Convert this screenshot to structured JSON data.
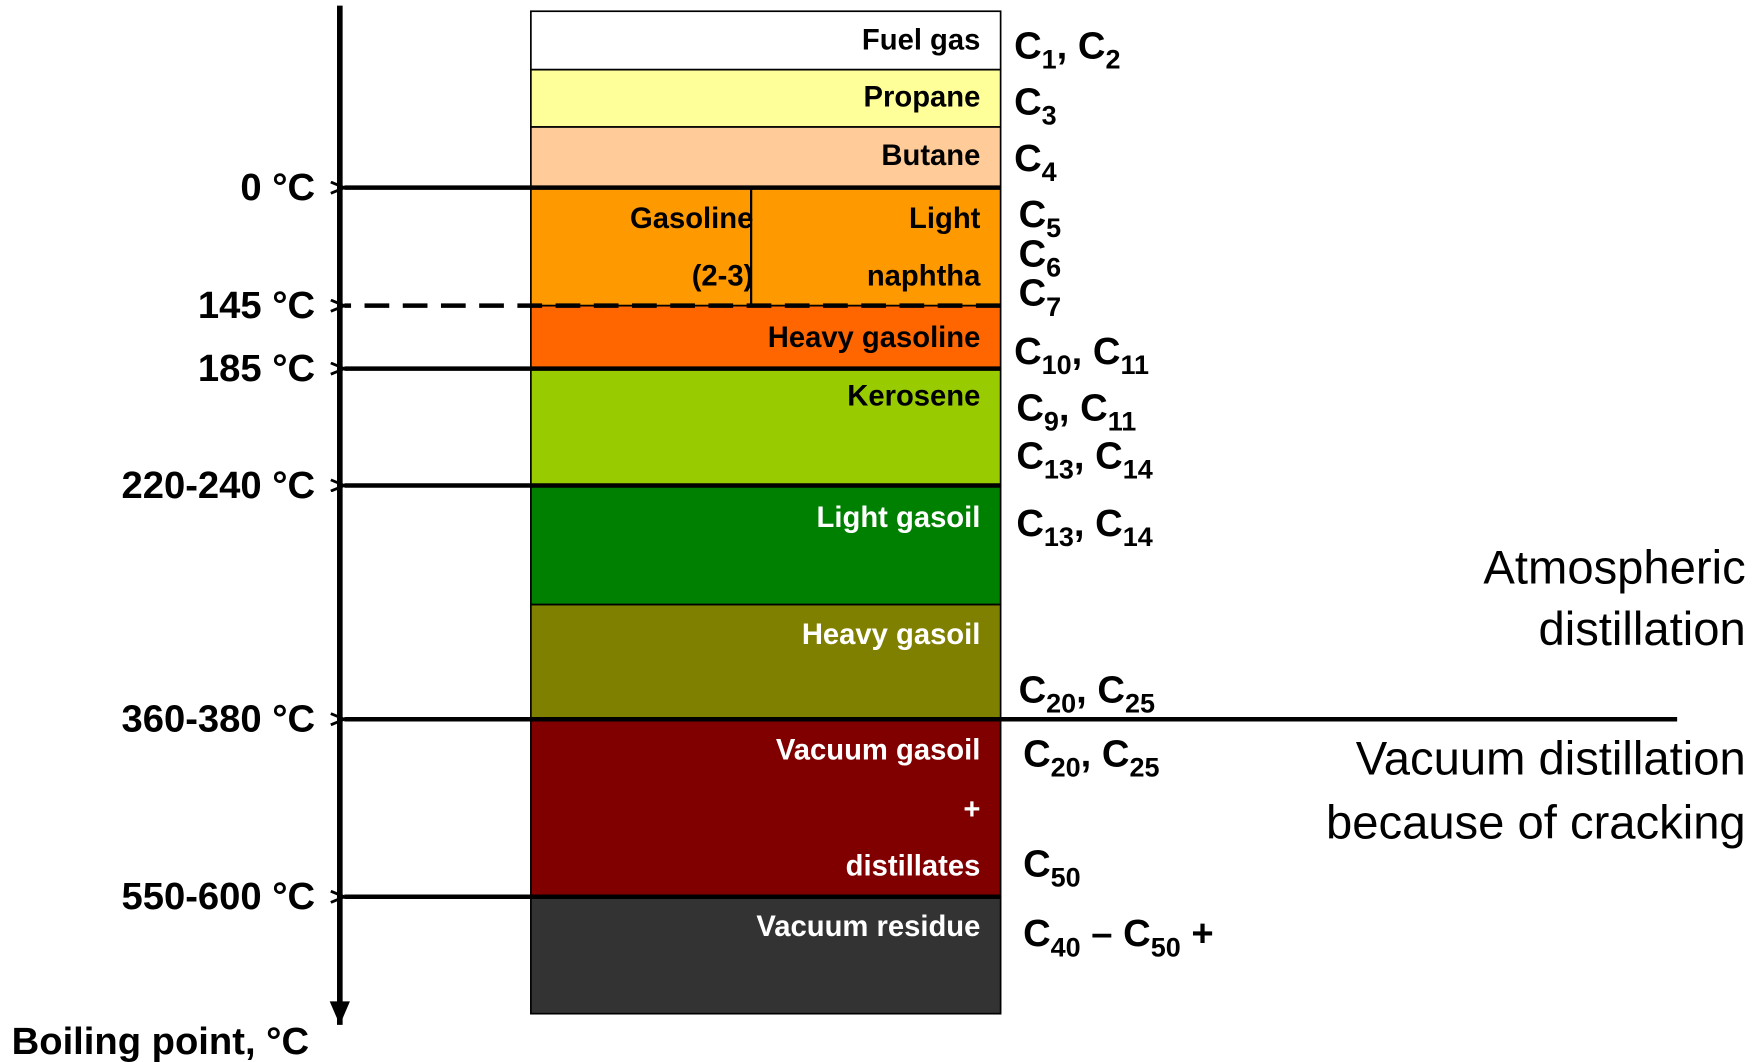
{
  "axis_title": "Boiling point, °C",
  "fractions": [
    {
      "lines": [
        "Fuel gas"
      ],
      "color": "#ffffff",
      "text_color": "#000000"
    },
    {
      "lines": [
        "Propane"
      ],
      "color": "#ffff99",
      "text_color": "#000000"
    },
    {
      "lines": [
        "Butane"
      ],
      "color": "#ffcc99",
      "text_color": "#000000"
    },
    {
      "lines": [
        "Light",
        "naphtha"
      ],
      "color": "#ff9900",
      "text_color": "#000000"
    },
    {
      "lines": [
        "Heavy gasoline"
      ],
      "color": "#ff6600",
      "text_color": "#000000"
    },
    {
      "lines": [
        "Kerosene"
      ],
      "color": "#99cc00",
      "text_color": "#000000"
    },
    {
      "lines": [
        "Light gasoil"
      ],
      "color": "#008000",
      "text_color": "#ffffff"
    },
    {
      "lines": [
        "Heavy gasoil"
      ],
      "color": "#808000",
      "text_color": "#ffffff"
    },
    {
      "lines": [
        "Vacuum gasoil",
        "+",
        "distillates"
      ],
      "color": "#800000",
      "text_color": "#ffffff"
    },
    {
      "lines": [
        "Vacuum residue"
      ],
      "color": "#333333",
      "text_color": "#ffffff"
    }
  ],
  "gasoline_overlay": {
    "lines": [
      "Gasoline",
      "(2-3)"
    ]
  },
  "temperatures": [
    "0 °C",
    "145 °C",
    "185 °C",
    "220-240 °C",
    "360-380 °C",
    "550-600 °C"
  ],
  "carbon_labels": [
    {
      "segments": [
        {
          "text": "C"
        },
        {
          "sub": "1"
        },
        {
          "text": ", C"
        },
        {
          "sub": "2"
        }
      ]
    },
    {
      "segments": [
        {
          "text": "C"
        },
        {
          "sub": "3"
        }
      ]
    },
    {
      "segments": [
        {
          "text": "C"
        },
        {
          "sub": "4"
        }
      ]
    },
    {
      "segments": [
        {
          "text": "C"
        },
        {
          "sub": "5"
        }
      ]
    },
    {
      "segments": [
        {
          "text": "C"
        },
        {
          "sub": "6"
        }
      ]
    },
    {
      "segments": [
        {
          "text": "C"
        },
        {
          "sub": "7"
        }
      ]
    },
    {
      "segments": [
        {
          "text": "C"
        },
        {
          "sub": "10"
        },
        {
          "text": ", C"
        },
        {
          "sub": "11"
        }
      ]
    },
    {
      "segments": [
        {
          "text": "C"
        },
        {
          "sub": "9"
        },
        {
          "text": ", C"
        },
        {
          "sub": "11"
        }
      ]
    },
    {
      "segments": [
        {
          "text": "C"
        },
        {
          "sub": "13"
        },
        {
          "text": ", C"
        },
        {
          "sub": "14"
        }
      ]
    },
    {
      "segments": [
        {
          "text": "C"
        },
        {
          "sub": "13"
        },
        {
          "text": ", C"
        },
        {
          "sub": "14"
        }
      ]
    },
    {
      "segments": [
        {
          "text": "C"
        },
        {
          "sub": "20"
        },
        {
          "text": ", C"
        },
        {
          "sub": "25"
        }
      ]
    },
    {
      "segments": [
        {
          "text": "C"
        },
        {
          "sub": "20"
        },
        {
          "text": ", C"
        },
        {
          "sub": "25"
        }
      ]
    },
    {
      "segments": [
        {
          "text": "C"
        },
        {
          "sub": "50"
        }
      ]
    },
    {
      "segments": [
        {
          "text": "C"
        },
        {
          "sub": "40"
        },
        {
          "text": " – C"
        },
        {
          "sub": "50"
        },
        {
          "text": " +"
        }
      ]
    }
  ],
  "atmospheric": [
    "Atmospheric",
    "distillation"
  ],
  "vacuum": [
    "Vacuum distillation",
    "because of cracking"
  ]
}
